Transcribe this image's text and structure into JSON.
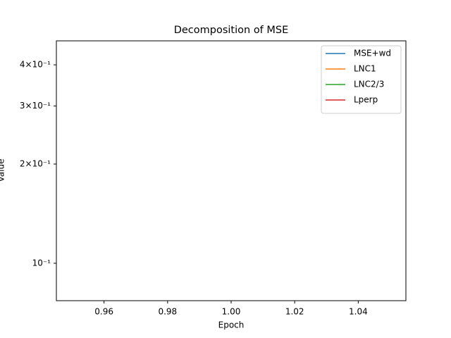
{
  "chart_data": {
    "type": "line",
    "title": "Decomposition of MSE",
    "xlabel": "Epoch",
    "ylabel": "Value",
    "x": [],
    "series": [
      {
        "name": "MSE+wd",
        "color": "#1f77b4",
        "values": []
      },
      {
        "name": "LNC1",
        "color": "#ff7f0e",
        "values": []
      },
      {
        "name": "LNC2/3",
        "color": "#2ca02c",
        "values": []
      },
      {
        "name": "Lperp",
        "color": "#d62728",
        "values": []
      }
    ],
    "xlim": [
      0.945,
      1.055
    ],
    "xticks": [
      0.96,
      0.98,
      {
        "value": 1.0,
        "label": "1.00"
      },
      1.02,
      1.04
    ],
    "ylim": [
      0.077,
      0.473
    ],
    "yscale": "log",
    "yticks": [
      {
        "value": 0.1,
        "label": "10⁻¹"
      },
      {
        "value": 0.2,
        "label": "2×10⁻¹"
      },
      {
        "value": 0.3,
        "label": "3×10⁻¹"
      },
      {
        "value": 0.4,
        "label": "4×10⁻¹"
      }
    ],
    "legend": "upper right"
  }
}
